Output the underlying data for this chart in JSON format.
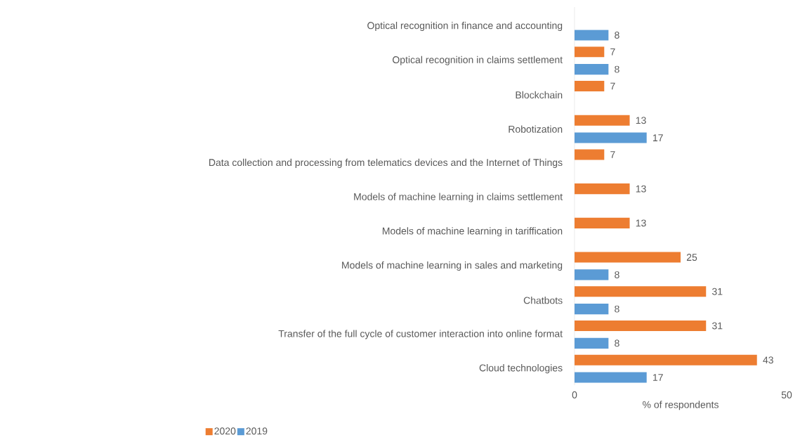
{
  "chart_data": {
    "type": "bar",
    "orientation": "horizontal",
    "xlabel": "% of respondents",
    "categories": [
      "Optical recognition in finance and accounting",
      "Optical recognition in claims settlement",
      "Blockchain",
      "Robotization",
      "Data collection and processing from telematics devices and the Internet of Things",
      "Models of machine learning in claims settlement",
      "Models of machine learning in tariffication",
      "Models of machine learning in sales and marketing",
      "Chatbots",
      "Transfer of the full cycle of customer interaction into online format",
      "Cloud technologies"
    ],
    "series": [
      {
        "name": "2020",
        "color": "#ed7d31",
        "values": [
          null,
          7,
          7,
          13,
          7,
          13,
          13,
          25,
          31,
          31,
          43
        ]
      },
      {
        "name": "2019",
        "color": "#5b9bd5",
        "values": [
          8,
          8,
          null,
          17,
          null,
          null,
          null,
          8,
          8,
          8,
          17
        ]
      }
    ],
    "xlim": [
      0,
      50
    ],
    "xticks": [
      0,
      50
    ],
    "grid": false,
    "legend": "bottom",
    "data_labels": true
  }
}
